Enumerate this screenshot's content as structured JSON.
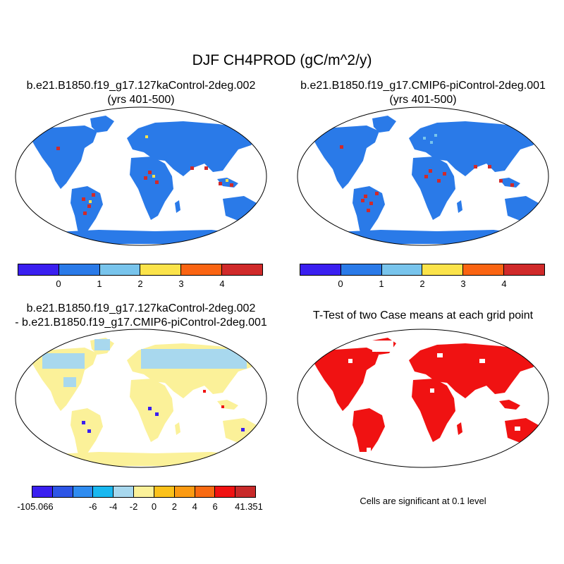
{
  "title": "DJF CH4PROD (gC/m^2/y)",
  "panels": {
    "case1": {
      "title_line1": "b.e21.B1850.f19_g17.127kaControl-2deg.002",
      "title_line2": "(yrs 401-500)"
    },
    "case2": {
      "title_line1": "b.e21.B1850.f19_g17.CMIP6-piControl-2deg.001",
      "title_line2": "(yrs 401-500)"
    },
    "diff": {
      "title_line1": "b.e21.B1850.f19_g17.127kaControl-2deg.002",
      "title_line2": "- b.e21.B1850.f19_g17.CMIP6-piControl-2deg.001"
    },
    "ttest": {
      "title": "T-Test of two Case means at each grid point",
      "note": "Cells are significant at 0.1 level"
    }
  },
  "colorbars": {
    "case": {
      "colors": [
        "#3a1ff0",
        "#2a7ae8",
        "#78c4ec",
        "#fbe34a",
        "#fa6412",
        "#d02a2a"
      ],
      "labels": [
        "0",
        "1",
        "2",
        "3",
        "4"
      ]
    },
    "diff": {
      "colors": [
        "#3a1ff0",
        "#2d55e6",
        "#2f8cf0",
        "#19b8f0",
        "#a8d8ee",
        "#fbf199",
        "#fbc11a",
        "#fb9a12",
        "#f86a12",
        "#f01212",
        "#c82a2a"
      ],
      "labels": [
        "-105.066",
        "-6",
        "-4",
        "-2",
        "0",
        "2",
        "4",
        "6",
        "41.351"
      ]
    }
  },
  "map_colors": {
    "case_land": "#2a7ae8",
    "diff_land": "#a8d8ee",
    "diff_land2": "#fbf199",
    "ttest_sig": "#f01212"
  }
}
